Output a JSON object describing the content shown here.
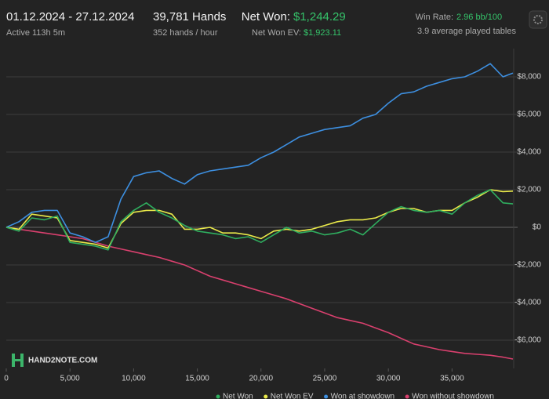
{
  "header": {
    "date_range": "01.12.2024 - 27.12.2024",
    "active": "Active 113h 5m",
    "hands": "39,781 Hands",
    "hands_per_hour": "352 hands / hour",
    "net_won_label": "Net Won:",
    "net_won_value": "$1,244.29",
    "net_won_ev_label": "Net Won  EV:",
    "net_won_ev_value": "$1,923.11",
    "win_rate_label": "Win Rate:",
    "win_rate_value": "2.96 bb/100",
    "tables": "3.9 average played tables",
    "logo": "HAND2NOTE.COM"
  },
  "chart_data": {
    "type": "line",
    "x": [
      0,
      1000,
      2000,
      3000,
      4000,
      5000,
      6000,
      7000,
      8000,
      9000,
      10000,
      11000,
      12000,
      13000,
      14000,
      15000,
      16000,
      17000,
      18000,
      19000,
      20000,
      21000,
      22000,
      23000,
      24000,
      25000,
      26000,
      27000,
      28000,
      29000,
      30000,
      31000,
      32000,
      33000,
      34000,
      35000,
      36000,
      37000,
      38000,
      39000,
      39781
    ],
    "series": [
      {
        "name": "Won without showdown",
        "color": "#d9406e",
        "values": [
          0,
          -100,
          -200,
          -300,
          -400,
          -500,
          -600,
          -800,
          -1000,
          -1150,
          -1300,
          -1450,
          -1600,
          -1800,
          -2000,
          -2300,
          -2600,
          -2800,
          -3000,
          -3200,
          -3400,
          -3600,
          -3800,
          -4050,
          -4300,
          -4550,
          -4800,
          -4950,
          -5100,
          -5350,
          -5600,
          -5900,
          -6200,
          -6350,
          -6500,
          -6600,
          -6700,
          -6750,
          -6800,
          -6900,
          -7000
        ]
      },
      {
        "name": "Won at showdown",
        "color": "#3d8fe0",
        "values": [
          0,
          300,
          800,
          900,
          900,
          -300,
          -500,
          -800,
          -500,
          1500,
          2700,
          2900,
          3000,
          2600,
          2300,
          2800,
          3000,
          3100,
          3200,
          3300,
          3700,
          4000,
          4400,
          4800,
          5000,
          5200,
          5300,
          5400,
          5800,
          6000,
          6600,
          7100,
          7200,
          7500,
          7700,
          7900,
          8000,
          8300,
          8700,
          8000,
          8200
        ]
      },
      {
        "name": "Net Won EV",
        "color": "#eaea4a",
        "values": [
          0,
          -100,
          700,
          600,
          500,
          -700,
          -800,
          -900,
          -1100,
          200,
          800,
          900,
          900,
          700,
          -100,
          -100,
          0,
          -300,
          -300,
          -400,
          -600,
          -200,
          -100,
          -200,
          -100,
          100,
          300,
          400,
          400,
          500,
          800,
          1000,
          1000,
          800,
          900,
          900,
          1300,
          1600,
          2000,
          1900,
          1923
        ]
      },
      {
        "name": "Net Won",
        "color": "#2fae5f",
        "values": [
          0,
          -200,
          500,
          400,
          600,
          -800,
          -900,
          -1000,
          -1200,
          300,
          900,
          1300,
          800,
          500,
          100,
          -200,
          -300,
          -400,
          -600,
          -500,
          -800,
          -400,
          0,
          -300,
          -200,
          -400,
          -300,
          -100,
          -400,
          200,
          800,
          1100,
          900,
          800,
          900,
          700,
          1300,
          1700,
          2000,
          1300,
          1244
        ]
      }
    ],
    "legend_order": [
      3,
      2,
      1,
      0
    ],
    "xlim": [
      0,
      39781
    ],
    "xticks": [
      0,
      {
        "value": 5000,
        "label": "5,000"
      },
      {
        "value": 10000,
        "label": "10,000"
      },
      {
        "value": 15000,
        "label": "15,000"
      },
      {
        "value": 20000,
        "label": "20,000"
      },
      {
        "value": 25000,
        "label": "25,000"
      },
      {
        "value": 30000,
        "label": "30,000"
      },
      {
        "value": 35000,
        "label": "35,000"
      }
    ],
    "ylim": [
      -7500,
      9500
    ],
    "yticks": [
      {
        "value": -6000,
        "label": "-$6,000"
      },
      {
        "value": -4000,
        "label": "-$4,000"
      },
      {
        "value": -2000,
        "label": "-$2,000"
      },
      {
        "value": 0,
        "label": "$0"
      },
      {
        "value": 2000,
        "label": "$2,000"
      },
      {
        "value": 4000,
        "label": "$4,000"
      },
      {
        "value": 6000,
        "label": "$6,000"
      },
      {
        "value": 8000,
        "label": "$8,000"
      }
    ],
    "grid": true
  }
}
